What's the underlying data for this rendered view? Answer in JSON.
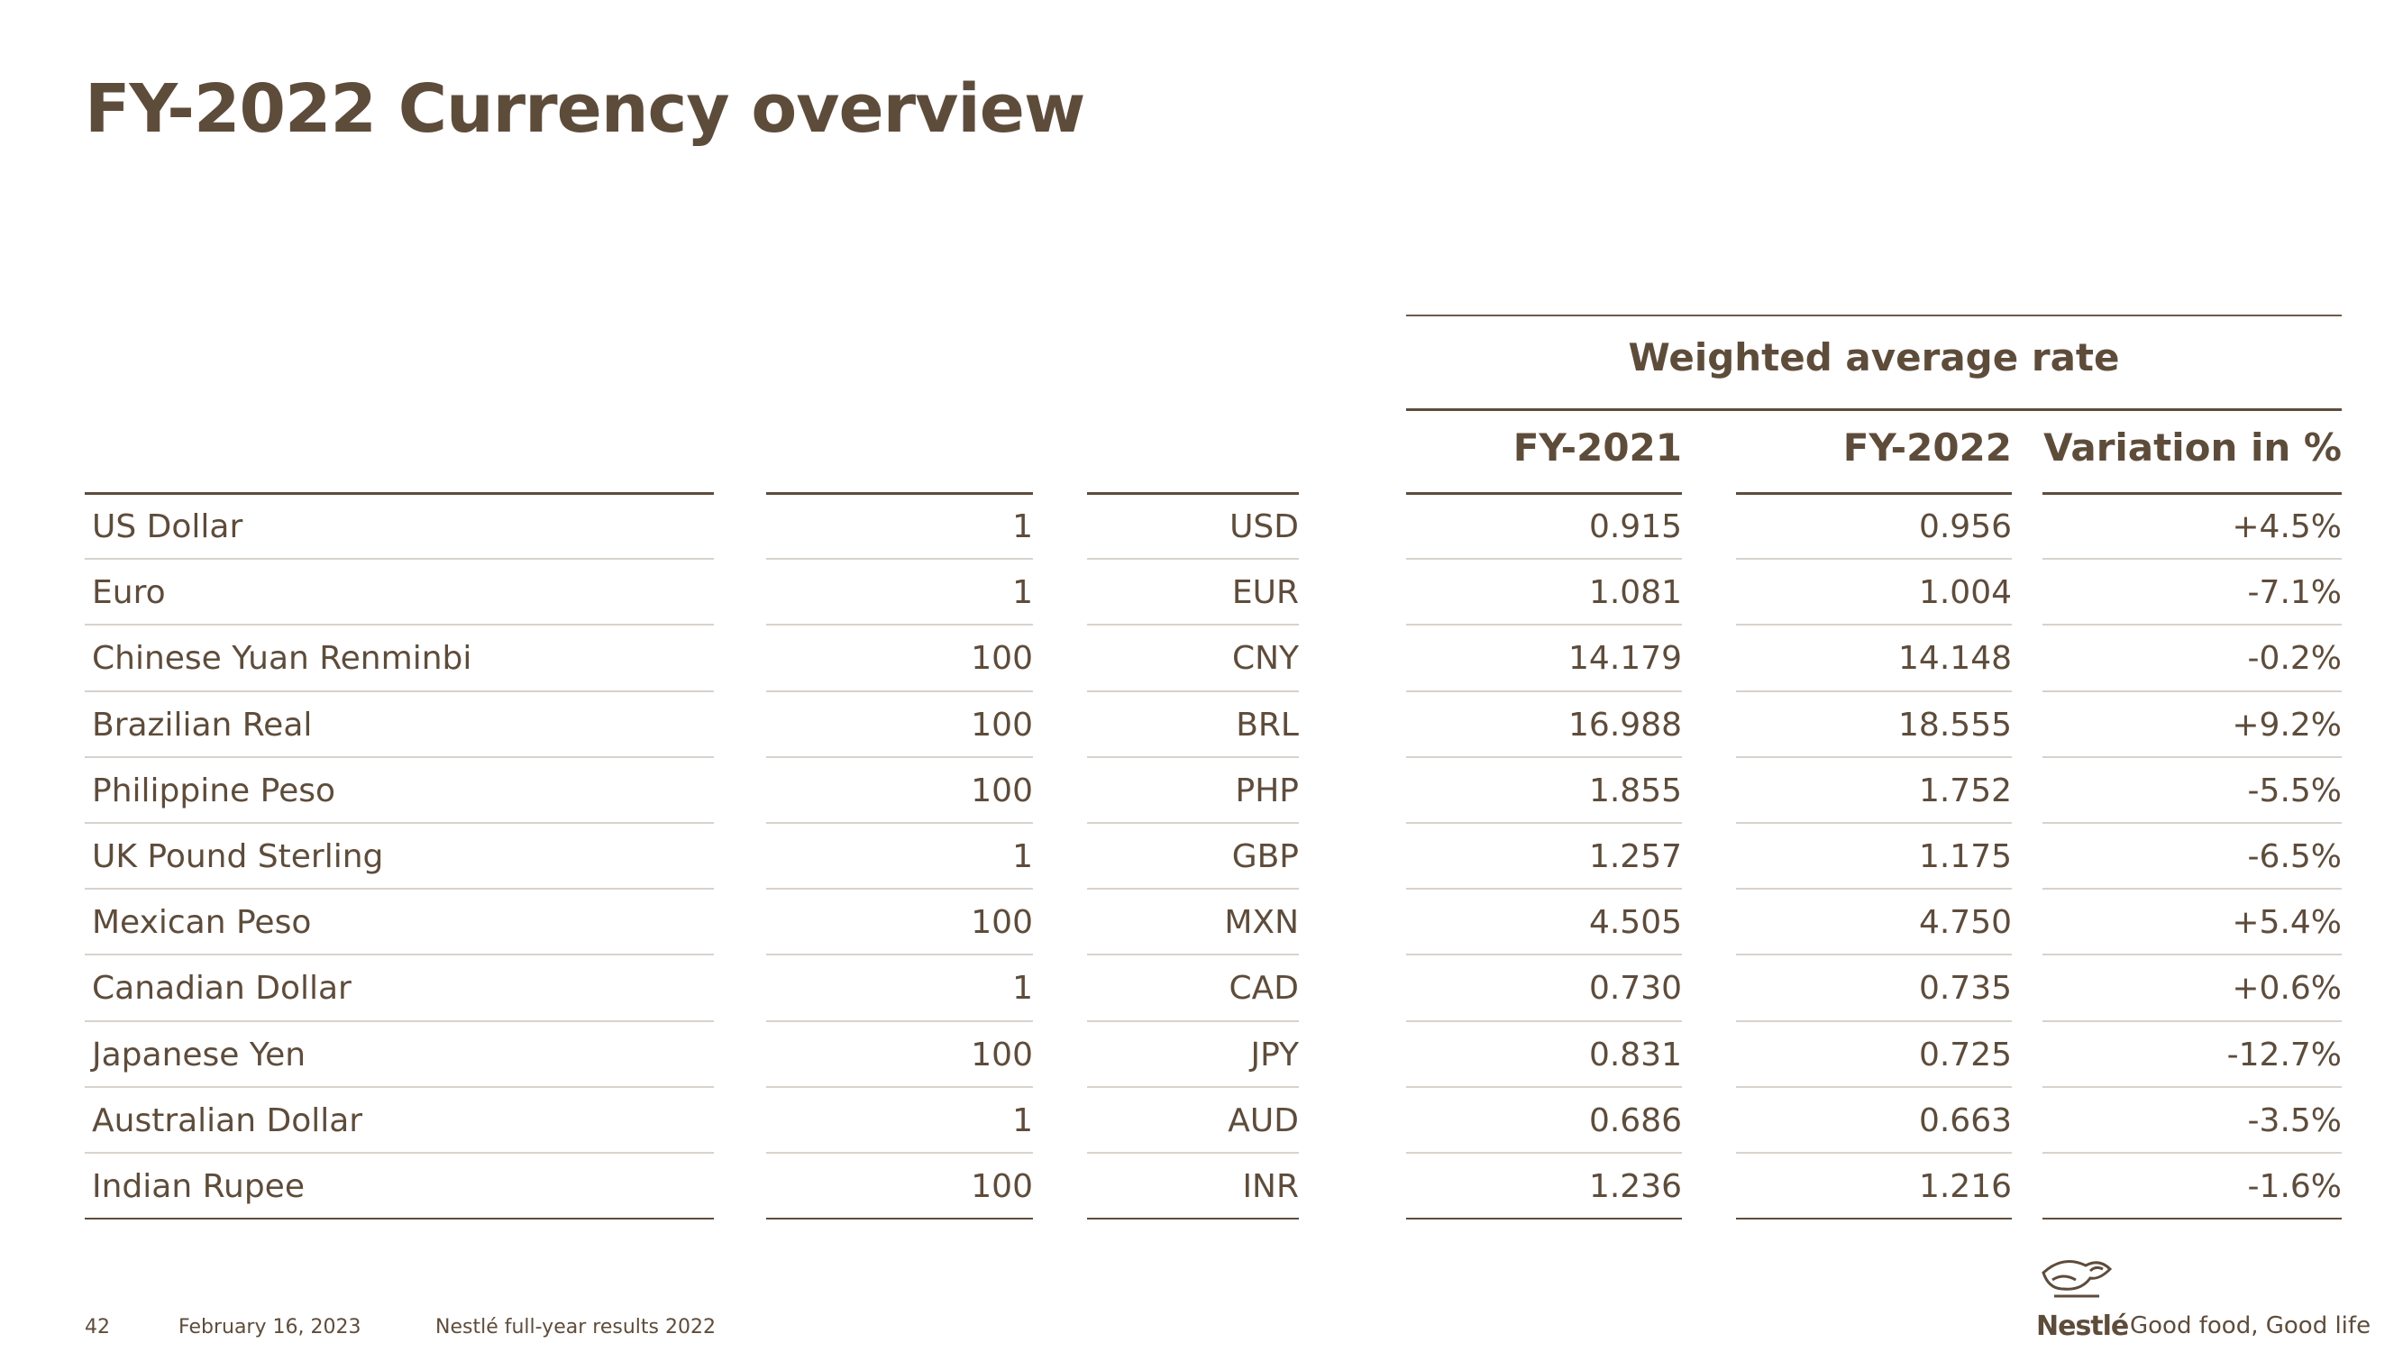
{
  "header": {
    "title": "FY-2022 Currency overview"
  },
  "table": {
    "group_header": "Weighted average rate",
    "columns": [
      "FY-2021",
      "FY-2022",
      "Variation in %"
    ],
    "rows": [
      [
        "US Dollar",
        "1",
        "USD",
        "0.915",
        "0.956",
        "+4.5%"
      ],
      [
        "Euro",
        "1",
        "EUR",
        "1.081",
        "1.004",
        "-7.1%"
      ],
      [
        "Chinese Yuan Renminbi",
        "100",
        "CNY",
        "14.179",
        "14.148",
        "-0.2%"
      ],
      [
        "Brazilian Real",
        "100",
        "BRL",
        "16.988",
        "18.555",
        "+9.2%"
      ],
      [
        "Philippine Peso",
        "100",
        "PHP",
        "1.855",
        "1.752",
        "-5.5%"
      ],
      [
        "UK Pound Sterling",
        "1",
        "GBP",
        "1.257",
        "1.175",
        "-6.5%"
      ],
      [
        "Mexican Peso",
        "100",
        "MXN",
        "4.505",
        "4.750",
        "+5.4%"
      ],
      [
        "Canadian Dollar",
        "1",
        "CAD",
        "0.730",
        "0.735",
        "+0.6%"
      ],
      [
        "Japanese Yen",
        "100",
        "JPY",
        "0.831",
        "0.725",
        "-12.7%"
      ],
      [
        "Australian Dollar",
        "1",
        "AUD",
        "0.686",
        "0.663",
        "-3.5%"
      ],
      [
        "Indian Rupee",
        "100",
        "INR",
        "1.236",
        "1.216",
        "-1.6%"
      ]
    ]
  },
  "footer": {
    "page": "42",
    "date": "February 16, 2023",
    "document": "Nestlé full-year results 2022"
  },
  "logo": {
    "brand": "Nestlé",
    "tagline": "Good food, Good life"
  }
}
